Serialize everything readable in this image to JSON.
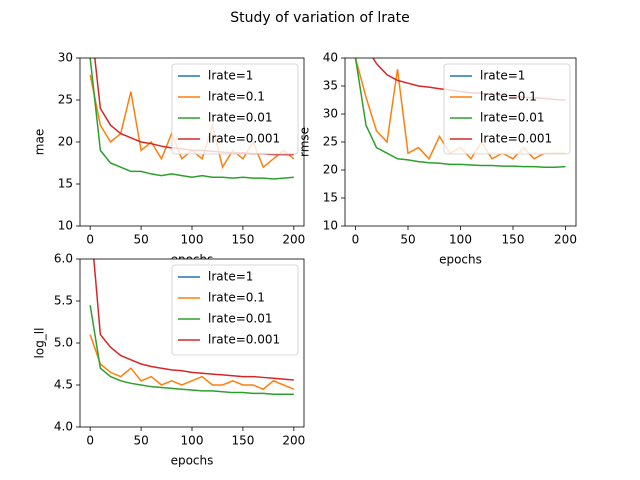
{
  "title": "Study of variation of lrate",
  "chart_data": [
    {
      "type": "line",
      "xlabel": "epochs",
      "ylabel": "mae",
      "x": [
        0,
        10,
        20,
        30,
        40,
        50,
        60,
        70,
        80,
        90,
        100,
        110,
        120,
        130,
        140,
        150,
        160,
        170,
        180,
        190,
        200
      ],
      "xlim": [
        -10,
        210
      ],
      "xticks": [
        0,
        50,
        100,
        150,
        200
      ],
      "ylim": [
        10,
        30
      ],
      "yticks": [
        10,
        15,
        20,
        25,
        30
      ],
      "legend": "upper right",
      "series": [
        {
          "name": "lrate=1",
          "color": "#1f77b4",
          "values": [
            null,
            null,
            null,
            null,
            null,
            null,
            null,
            null,
            null,
            null,
            null,
            null,
            null,
            null,
            null,
            null,
            null,
            null,
            null,
            null,
            null
          ]
        },
        {
          "name": "lrate=0.1",
          "color": "#ff7f0e",
          "values": [
            28,
            22,
            20,
            21,
            26,
            19,
            20,
            18,
            21,
            18,
            19,
            18,
            22,
            17,
            19,
            18,
            20,
            17,
            18,
            19,
            18
          ]
        },
        {
          "name": "lrate=0.01",
          "color": "#2ca02c",
          "values": [
            30,
            19,
            17.5,
            17,
            16.5,
            16.5,
            16.2,
            16,
            16.2,
            16,
            15.8,
            16,
            15.8,
            15.8,
            15.7,
            15.8,
            15.7,
            15.7,
            15.6,
            15.7,
            15.8
          ]
        },
        {
          "name": "lrate=0.001",
          "color": "#d62728",
          "values": [
            35,
            24,
            22,
            21,
            20.5,
            20,
            19.8,
            19.5,
            19.3,
            19.2,
            19,
            19,
            18.9,
            18.8,
            18.7,
            18.7,
            18.6,
            18.6,
            18.5,
            18.5,
            18.5
          ]
        }
      ]
    },
    {
      "type": "line",
      "xlabel": "epochs",
      "ylabel": "rmse",
      "x": [
        0,
        10,
        20,
        30,
        40,
        50,
        60,
        70,
        80,
        90,
        100,
        110,
        120,
        130,
        140,
        150,
        160,
        170,
        180,
        190,
        200
      ],
      "xlim": [
        -10,
        210
      ],
      "xticks": [
        0,
        50,
        100,
        150,
        200
      ],
      "ylim": [
        10,
        40
      ],
      "yticks": [
        10,
        15,
        20,
        25,
        30,
        35,
        40
      ],
      "legend": "upper right",
      "series": [
        {
          "name": "lrate=1",
          "color": "#1f77b4",
          "values": [
            null,
            null,
            null,
            null,
            null,
            null,
            null,
            null,
            null,
            null,
            null,
            null,
            null,
            null,
            null,
            null,
            null,
            null,
            null,
            null,
            null
          ]
        },
        {
          "name": "lrate=0.1",
          "color": "#ff7f0e",
          "values": [
            40,
            33,
            27,
            25,
            38,
            23,
            24,
            22,
            26,
            23,
            24,
            22,
            25,
            22,
            23,
            22,
            24,
            22,
            23,
            23,
            23
          ]
        },
        {
          "name": "lrate=0.01",
          "color": "#2ca02c",
          "values": [
            40,
            28,
            24,
            23,
            22,
            21.8,
            21.5,
            21.3,
            21.2,
            21,
            21,
            20.9,
            20.8,
            20.8,
            20.7,
            20.7,
            20.6,
            20.6,
            20.5,
            20.5,
            20.6
          ]
        },
        {
          "name": "lrate=0.001",
          "color": "#d62728",
          "values": [
            45,
            42,
            39,
            37,
            36,
            35.5,
            35,
            34.8,
            34.5,
            34.3,
            34,
            33.8,
            33.7,
            33.5,
            33.3,
            33.2,
            33,
            32.9,
            32.8,
            32.6,
            32.5
          ]
        }
      ]
    },
    {
      "type": "line",
      "xlabel": "epochs",
      "ylabel": "log_ll",
      "x": [
        0,
        10,
        20,
        30,
        40,
        50,
        60,
        70,
        80,
        90,
        100,
        110,
        120,
        130,
        140,
        150,
        160,
        170,
        180,
        190,
        200
      ],
      "xlim": [
        -10,
        210
      ],
      "xticks": [
        0,
        50,
        100,
        150,
        200
      ],
      "ylim": [
        4,
        6
      ],
      "yticks": [
        {
          "value": 4,
          "label": "4.0"
        },
        4.5,
        {
          "value": 5,
          "label": "5.0"
        },
        5.5,
        {
          "value": 6,
          "label": "6.0"
        }
      ],
      "legend": "upper right",
      "series": [
        {
          "name": "lrate=1",
          "color": "#1f77b4",
          "values": [
            null,
            null,
            null,
            null,
            null,
            null,
            null,
            null,
            null,
            null,
            null,
            null,
            null,
            null,
            null,
            null,
            null,
            null,
            null,
            null,
            null
          ]
        },
        {
          "name": "lrate=0.1",
          "color": "#ff7f0e",
          "values": [
            5.1,
            4.75,
            4.65,
            4.6,
            4.7,
            4.55,
            4.6,
            4.5,
            4.55,
            4.5,
            4.55,
            4.6,
            4.5,
            4.5,
            4.55,
            4.5,
            4.5,
            4.45,
            4.55,
            4.5,
            4.45
          ]
        },
        {
          "name": "lrate=0.01",
          "color": "#2ca02c",
          "values": [
            5.45,
            4.7,
            4.6,
            4.55,
            4.52,
            4.5,
            4.48,
            4.47,
            4.46,
            4.45,
            4.44,
            4.43,
            4.43,
            4.42,
            4.41,
            4.41,
            4.4,
            4.4,
            4.39,
            4.39,
            4.39
          ]
        },
        {
          "name": "lrate=0.001",
          "color": "#d62728",
          "values": [
            6.5,
            5.1,
            4.95,
            4.85,
            4.8,
            4.75,
            4.72,
            4.7,
            4.68,
            4.67,
            4.65,
            4.64,
            4.63,
            4.62,
            4.61,
            4.6,
            4.6,
            4.59,
            4.58,
            4.57,
            4.56
          ]
        }
      ]
    }
  ]
}
